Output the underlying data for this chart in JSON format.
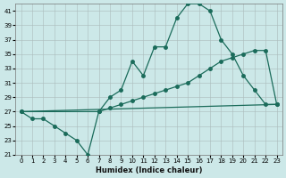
{
  "xlabel": "Humidex (Indice chaleur)",
  "background_color": "#cce8e8",
  "grid_color": "#aabbbb",
  "line_color": "#1a6b5a",
  "xlim": [
    -0.5,
    23.5
  ],
  "ylim": [
    21,
    42
  ],
  "yticks": [
    21,
    23,
    25,
    27,
    29,
    31,
    33,
    35,
    37,
    39,
    41
  ],
  "xticks": [
    0,
    1,
    2,
    3,
    4,
    5,
    6,
    7,
    8,
    9,
    10,
    11,
    12,
    13,
    14,
    15,
    16,
    17,
    18,
    19,
    20,
    21,
    22,
    23
  ],
  "curve1_x": [
    0,
    1,
    2,
    3,
    4,
    5,
    6,
    7,
    8,
    9,
    10,
    11,
    12,
    13,
    14,
    15,
    16,
    17,
    18,
    19,
    20,
    21,
    22,
    23
  ],
  "curve1_y": [
    27,
    26,
    26,
    25,
    24,
    23,
    21,
    27,
    29,
    30,
    34,
    32,
    36,
    36,
    40,
    42,
    42,
    41,
    37,
    35,
    32,
    30,
    28,
    28
  ],
  "curve2_x": [
    0,
    7,
    8,
    9,
    10,
    11,
    12,
    13,
    14,
    15,
    16,
    17,
    18,
    19,
    20,
    21,
    22,
    23
  ],
  "curve2_y": [
    27,
    27,
    27.5,
    28,
    28.5,
    29,
    29.5,
    30,
    30.5,
    31,
    32,
    33,
    34,
    34.5,
    35,
    35.5,
    35.5,
    28
  ],
  "curve3_x": [
    0,
    23
  ],
  "curve3_y": [
    27,
    28
  ]
}
